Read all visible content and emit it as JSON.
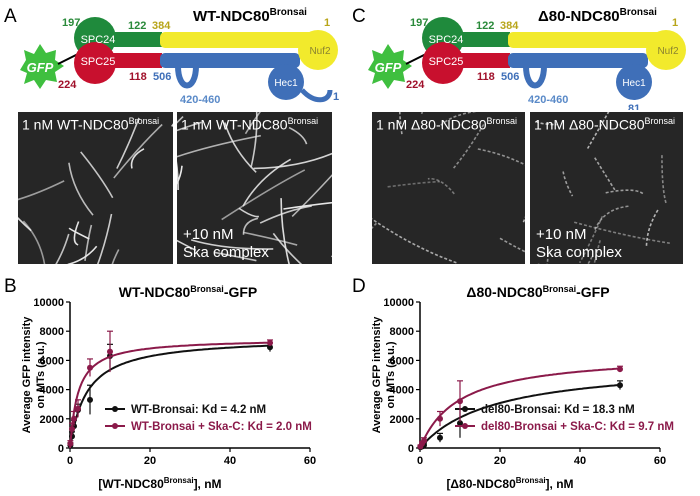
{
  "panels": {
    "A": {
      "letter": "A",
      "title_main": "WT-NDC80",
      "title_sup": "Bronsai",
      "nums": {
        "n197": "197",
        "n122": "122",
        "n384": "384",
        "n1": "1",
        "n224": "224",
        "n118": "118",
        "n506": "506",
        "n420": "420-460",
        "tail": "1"
      },
      "labels": {
        "spc24": "SPC24",
        "spc25": "SPC25",
        "nuf2": "Nuf2",
        "hec1": "Hec1",
        "gfp": "GFP"
      },
      "images": [
        {
          "cap_main": "1 nM WT-NDC80",
          "cap_sup": "Bronsai",
          "line2": "",
          "line3": ""
        },
        {
          "cap_main": "1 nM WT-NDC80",
          "cap_sup": "Bronsai",
          "line2": "+10 nM",
          "line3": "Ska complex"
        }
      ]
    },
    "C": {
      "letter": "C",
      "title_main": "Δ80-NDC80",
      "title_sup": "Bronsai",
      "nums": {
        "n197": "197",
        "n122": "122",
        "n384": "384",
        "n1": "1",
        "n224": "224",
        "n118": "118",
        "n506": "506",
        "n420": "420-460",
        "tail": "81"
      },
      "labels": {
        "spc24": "SPC24",
        "spc25": "SPC25",
        "nuf2": "Nuf2",
        "hec1": "Hec1",
        "gfp": "GFP"
      },
      "images": [
        {
          "cap_main": "1 nM Δ80-NDC80",
          "cap_sup": "Bronsai",
          "line2": "",
          "line3": ""
        },
        {
          "cap_main": "1 nM Δ80-NDC80",
          "cap_sup": "Bronsai",
          "line2": "+10 nM",
          "line3": "Ska complex"
        }
      ]
    }
  },
  "colors": {
    "spc24": "#1f8a3c",
    "spc25": "#c8102e",
    "nuf2": "#f2ea2c",
    "hec1": "#3f6fb8",
    "gfp": "#3fbf3f",
    "wt": "#111111",
    "ska": "#8b1a4a",
    "num_green": "#2a8a3a",
    "num_yellow": "#b8a51a",
    "num_red": "#a0102a",
    "num_blue": "#3f6fb8"
  },
  "chart_data": [
    {
      "type": "line",
      "letter": "B",
      "title_main": "WT-NDC80",
      "title_sup": "Bronsai",
      "title_end": "-GFP",
      "ylabel": "Average GFP intensity on MTs (a.u.)",
      "xlabel_main": "[WT-NDC80",
      "xlabel_sup": "Bronsai",
      "xlabel_end": "], nM",
      "xlim": [
        0,
        60
      ],
      "ylim": [
        0,
        10000
      ],
      "xticks": [
        "0",
        "20",
        "40",
        "60"
      ],
      "yticks": [
        "0",
        "2000",
        "4000",
        "6000",
        "8000",
        "10000"
      ],
      "series": [
        {
          "name": "WT-Bronsai: Kd = 4.2 nM",
          "color": "#111111",
          "x": [
            0.1,
            0.5,
            1,
            2,
            5,
            10,
            50
          ],
          "y": [
            200,
            800,
            1500,
            2600,
            3300,
            6300,
            6900
          ],
          "err": [
            150,
            300,
            400,
            400,
            1000,
            800,
            300
          ],
          "kd": 4.2,
          "bmax": 7600
        },
        {
          "name": "WT-Bronsai + Ska-C: Kd = 2.0 nM",
          "color": "#8b1a4a",
          "x": [
            0.1,
            0.5,
            1,
            2,
            5,
            10,
            50
          ],
          "y": [
            300,
            1300,
            2000,
            2700,
            5500,
            6600,
            7200
          ],
          "err": [
            200,
            400,
            500,
            600,
            600,
            1400,
            200
          ],
          "kd": 2.0,
          "bmax": 7500
        }
      ]
    },
    {
      "type": "line",
      "letter": "D",
      "title_main": "Δ80-NDC80",
      "title_sup": "Bronsai",
      "title_end": "-GFP",
      "ylabel": "Average GFP intensity on MTs (a.u.)",
      "xlabel_main": "[Δ80-NDC80",
      "xlabel_sup": "Bronsai",
      "xlabel_end": "], nM",
      "xlim": [
        0,
        60
      ],
      "ylim": [
        0,
        10000
      ],
      "xticks": [
        "0",
        "20",
        "40",
        "60"
      ],
      "yticks": [
        "0",
        "2000",
        "4000",
        "6000",
        "8000",
        "10000"
      ],
      "series": [
        {
          "name": "del80-Bronsai: Kd = 18.3 nM",
          "color": "#111111",
          "x": [
            0.1,
            0.5,
            1,
            5,
            10,
            50
          ],
          "y": [
            50,
            100,
            200,
            700,
            1700,
            4300
          ],
          "err": [
            50,
            100,
            150,
            300,
            1000,
            300
          ],
          "kd": 18.3,
          "bmax": 5900
        },
        {
          "name": "del80-Bronsai + Ska-C: Kd = 9.7 nM",
          "color": "#8b1a4a",
          "x": [
            0.1,
            0.5,
            1,
            5,
            10,
            50
          ],
          "y": [
            100,
            300,
            500,
            2000,
            3200,
            5400
          ],
          "err": [
            100,
            150,
            200,
            500,
            1400,
            200
          ],
          "kd": 9.7,
          "bmax": 6500
        }
      ]
    }
  ]
}
